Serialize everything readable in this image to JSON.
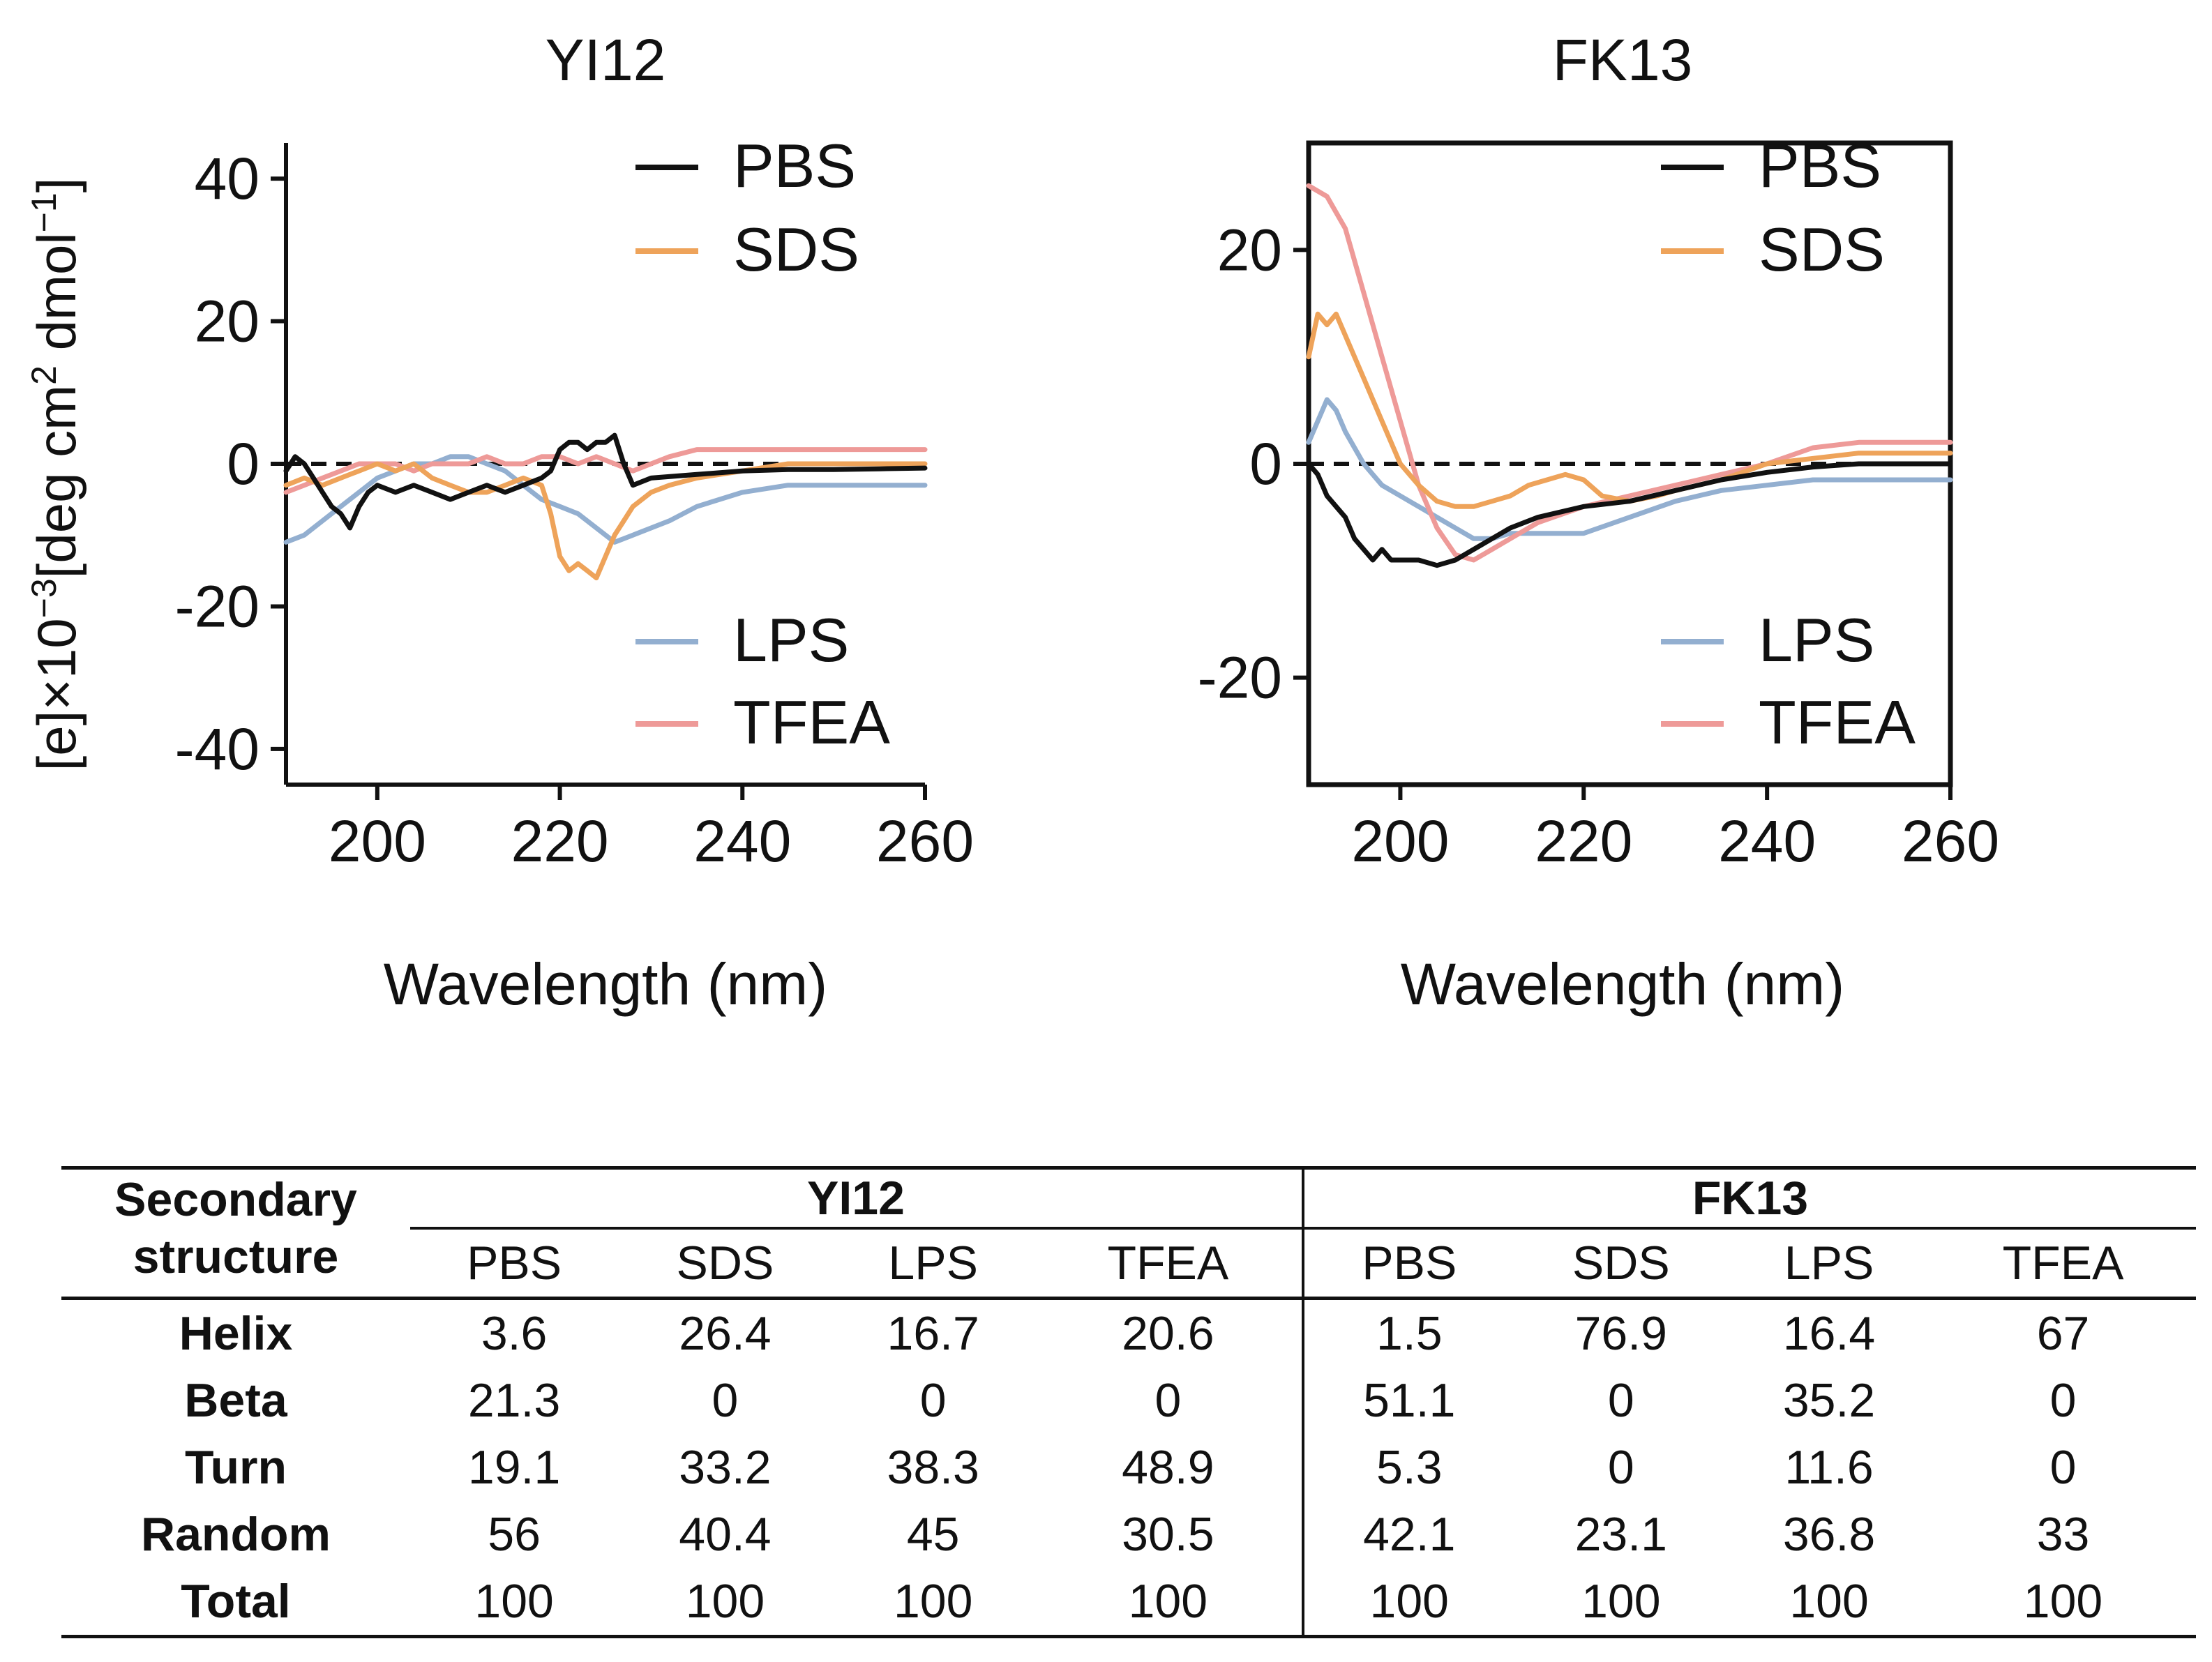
{
  "chart_data": [
    {
      "type": "line",
      "title": "YI12",
      "xlabel": "Wavelength (nm)",
      "ylabel": "[e]×10⁻³[deg cm² dmol⁻¹]",
      "xlim": [
        190,
        260
      ],
      "ylim": [
        -45,
        45
      ],
      "xticks": [
        200,
        220,
        240,
        260
      ],
      "yticks": [
        -40,
        -20,
        0,
        20,
        40
      ],
      "grid": false,
      "legend": "top-right (PBS, SDS) and bottom-right (LPS, TFEA)",
      "reference_line": {
        "y": 0,
        "style": "dashed"
      },
      "series": [
        {
          "name": "PBS",
          "color": "#111111",
          "points": [
            [
              190,
              -1
            ],
            [
              191,
              1
            ],
            [
              192,
              0
            ],
            [
              193,
              -2
            ],
            [
              194,
              -4
            ],
            [
              195,
              -6
            ],
            [
              196,
              -7
            ],
            [
              197,
              -9
            ],
            [
              198,
              -6
            ],
            [
              199,
              -4
            ],
            [
              200,
              -3
            ],
            [
              202,
              -4
            ],
            [
              204,
              -3
            ],
            [
              206,
              -4
            ],
            [
              208,
              -5
            ],
            [
              210,
              -4
            ],
            [
              212,
              -3
            ],
            [
              214,
              -4
            ],
            [
              216,
              -3
            ],
            [
              218,
              -2
            ],
            [
              219,
              -1
            ],
            [
              220,
              2
            ],
            [
              221,
              3
            ],
            [
              222,
              3
            ],
            [
              223,
              2
            ],
            [
              224,
              3
            ],
            [
              225,
              3
            ],
            [
              226,
              4
            ],
            [
              227,
              0
            ],
            [
              228,
              -3
            ],
            [
              230,
              -2
            ],
            [
              235,
              -1.5
            ],
            [
              240,
              -1
            ],
            [
              245,
              -0.8
            ],
            [
              250,
              -0.8
            ],
            [
              255,
              -0.7
            ],
            [
              260,
              -0.6
            ]
          ]
        },
        {
          "name": "SDS",
          "color": "#EEA35A",
          "points": [
            [
              190,
              -3
            ],
            [
              192,
              -2
            ],
            [
              194,
              -3
            ],
            [
              196,
              -2
            ],
            [
              198,
              -1
            ],
            [
              200,
              0
            ],
            [
              202,
              -1
            ],
            [
              204,
              0
            ],
            [
              206,
              -2
            ],
            [
              208,
              -3
            ],
            [
              210,
              -4
            ],
            [
              212,
              -4
            ],
            [
              214,
              -3
            ],
            [
              216,
              -2
            ],
            [
              218,
              -3
            ],
            [
              219,
              -7
            ],
            [
              220,
              -13
            ],
            [
              221,
              -15
            ],
            [
              222,
              -14
            ],
            [
              223,
              -15
            ],
            [
              224,
              -16
            ],
            [
              225,
              -13
            ],
            [
              226,
              -10
            ],
            [
              227,
              -8
            ],
            [
              228,
              -6
            ],
            [
              230,
              -4
            ],
            [
              232,
              -3
            ],
            [
              235,
              -2
            ],
            [
              240,
              -1
            ],
            [
              245,
              0
            ],
            [
              250,
              0
            ],
            [
              255,
              0
            ],
            [
              260,
              0
            ]
          ]
        },
        {
          "name": "LPS",
          "color": "#93AFD0",
          "points": [
            [
              190,
              -11
            ],
            [
              192,
              -10
            ],
            [
              194,
              -8
            ],
            [
              196,
              -6
            ],
            [
              198,
              -4
            ],
            [
              200,
              -2
            ],
            [
              202,
              -1
            ],
            [
              204,
              0
            ],
            [
              206,
              0
            ],
            [
              208,
              1
            ],
            [
              210,
              1
            ],
            [
              212,
              0
            ],
            [
              214,
              -1
            ],
            [
              216,
              -3
            ],
            [
              218,
              -5
            ],
            [
              220,
              -6
            ],
            [
              222,
              -7
            ],
            [
              224,
              -9
            ],
            [
              226,
              -11
            ],
            [
              228,
              -10
            ],
            [
              230,
              -9
            ],
            [
              232,
              -8
            ],
            [
              235,
              -6
            ],
            [
              240,
              -4
            ],
            [
              245,
              -3
            ],
            [
              250,
              -3
            ],
            [
              255,
              -3
            ],
            [
              260,
              -3
            ]
          ]
        },
        {
          "name": "TFEA",
          "color": "#EE9A98",
          "points": [
            [
              190,
              -4
            ],
            [
              192,
              -3
            ],
            [
              194,
              -2
            ],
            [
              196,
              -1
            ],
            [
              198,
              0
            ],
            [
              200,
              0
            ],
            [
              202,
              0
            ],
            [
              204,
              -1
            ],
            [
              206,
              0
            ],
            [
              208,
              0
            ],
            [
              210,
              0
            ],
            [
              212,
              1
            ],
            [
              214,
              0
            ],
            [
              216,
              0
            ],
            [
              218,
              1
            ],
            [
              220,
              1
            ],
            [
              222,
              0
            ],
            [
              224,
              1
            ],
            [
              226,
              0
            ],
            [
              228,
              -1
            ],
            [
              230,
              0
            ],
            [
              232,
              1
            ],
            [
              235,
              2
            ],
            [
              240,
              2
            ],
            [
              245,
              2
            ],
            [
              250,
              2
            ],
            [
              255,
              2
            ],
            [
              260,
              2
            ]
          ]
        }
      ]
    },
    {
      "type": "line",
      "title": "FK13",
      "xlabel": "Wavelength (nm)",
      "ylabel": "",
      "xlim": [
        190,
        260
      ],
      "ylim": [
        -30,
        30
      ],
      "xticks": [
        200,
        220,
        240,
        260
      ],
      "yticks": [
        -20,
        0,
        20
      ],
      "grid": false,
      "legend": "top-right (PBS, SDS) and bottom-right (LPS, TFEA)",
      "reference_line": {
        "y": 0,
        "style": "dashed"
      },
      "series": [
        {
          "name": "PBS",
          "color": "#111111",
          "points": [
            [
              190,
              0
            ],
            [
              191,
              -1
            ],
            [
              192,
              -3
            ],
            [
              193,
              -4
            ],
            [
              194,
              -5
            ],
            [
              195,
              -7
            ],
            [
              196,
              -8
            ],
            [
              197,
              -9
            ],
            [
              198,
              -8
            ],
            [
              199,
              -9
            ],
            [
              200,
              -9
            ],
            [
              202,
              -9
            ],
            [
              204,
              -9.5
            ],
            [
              206,
              -9
            ],
            [
              208,
              -8
            ],
            [
              210,
              -7
            ],
            [
              212,
              -6
            ],
            [
              215,
              -5
            ],
            [
              220,
              -4
            ],
            [
              225,
              -3.5
            ],
            [
              230,
              -2.5
            ],
            [
              235,
              -1.5
            ],
            [
              240,
              -0.8
            ],
            [
              245,
              -0.3
            ],
            [
              250,
              0
            ],
            [
              255,
              0
            ],
            [
              260,
              0
            ]
          ]
        },
        {
          "name": "SDS",
          "color": "#EEA35A",
          "points": [
            [
              190,
              10
            ],
            [
              191,
              14
            ],
            [
              192,
              13
            ],
            [
              193,
              14
            ],
            [
              194,
              12
            ],
            [
              196,
              8
            ],
            [
              198,
              4
            ],
            [
              200,
              0
            ],
            [
              202,
              -2
            ],
            [
              204,
              -3.5
            ],
            [
              206,
              -4
            ],
            [
              208,
              -4
            ],
            [
              210,
              -3.5
            ],
            [
              212,
              -3
            ],
            [
              214,
              -2
            ],
            [
              216,
              -1.5
            ],
            [
              218,
              -1
            ],
            [
              220,
              -1.5
            ],
            [
              222,
              -3
            ],
            [
              225,
              -3.5
            ],
            [
              228,
              -3
            ],
            [
              230,
              -2.5
            ],
            [
              235,
              -1.5
            ],
            [
              240,
              0
            ],
            [
              245,
              0.5
            ],
            [
              250,
              1
            ],
            [
              255,
              1
            ],
            [
              260,
              1
            ]
          ]
        },
        {
          "name": "LPS",
          "color": "#93AFD0",
          "points": [
            [
              190,
              2
            ],
            [
              191,
              4
            ],
            [
              192,
              6
            ],
            [
              193,
              5
            ],
            [
              194,
              3
            ],
            [
              196,
              0
            ],
            [
              198,
              -2
            ],
            [
              200,
              -3
            ],
            [
              202,
              -4
            ],
            [
              204,
              -5
            ],
            [
              206,
              -6
            ],
            [
              208,
              -7
            ],
            [
              210,
              -7
            ],
            [
              212,
              -6.5
            ],
            [
              215,
              -6.5
            ],
            [
              220,
              -6.5
            ],
            [
              225,
              -5
            ],
            [
              230,
              -3.5
            ],
            [
              235,
              -2.5
            ],
            [
              240,
              -2
            ],
            [
              245,
              -1.5
            ],
            [
              250,
              -1.5
            ],
            [
              255,
              -1.5
            ],
            [
              260,
              -1.5
            ]
          ]
        },
        {
          "name": "TFEA",
          "color": "#EE9A98",
          "points": [
            [
              190,
              26
            ],
            [
              192,
              25
            ],
            [
              194,
              22
            ],
            [
              196,
              16
            ],
            [
              198,
              10
            ],
            [
              200,
              4
            ],
            [
              202,
              -2
            ],
            [
              204,
              -6
            ],
            [
              206,
              -8.5
            ],
            [
              208,
              -9
            ],
            [
              210,
              -8
            ],
            [
              212,
              -7
            ],
            [
              215,
              -5.5
            ],
            [
              220,
              -4
            ],
            [
              225,
              -3
            ],
            [
              230,
              -2
            ],
            [
              235,
              -1
            ],
            [
              240,
              0
            ],
            [
              245,
              1.5
            ],
            [
              250,
              2
            ],
            [
              255,
              2
            ],
            [
              260,
              2
            ]
          ]
        }
      ]
    },
    {
      "type": "table",
      "corner_header": [
        "Secondary",
        "structure"
      ],
      "groups": [
        "YI12",
        "FK13"
      ],
      "columns": [
        "PBS",
        "SDS",
        "LPS",
        "TFEA"
      ],
      "rows": [
        {
          "label": "Helix",
          "values": [
            "3.6",
            "26.4",
            "16.7",
            "20.6",
            "1.5",
            "76.9",
            "16.4",
            "67"
          ]
        },
        {
          "label": "Beta",
          "values": [
            "21.3",
            "0",
            "0",
            "0",
            "51.1",
            "0",
            "35.2",
            "0"
          ]
        },
        {
          "label": "Turn",
          "values": [
            "19.1",
            "33.2",
            "38.3",
            "48.9",
            "5.3",
            "0",
            "11.6",
            "0"
          ]
        },
        {
          "label": "Random",
          "values": [
            "56",
            "40.4",
            "45",
            "30.5",
            "42.1",
            "23.1",
            "36.8",
            "33"
          ]
        },
        {
          "label": "Total",
          "values": [
            "100",
            "100",
            "100",
            "100",
            "100",
            "100",
            "100",
            "100"
          ]
        }
      ]
    }
  ]
}
